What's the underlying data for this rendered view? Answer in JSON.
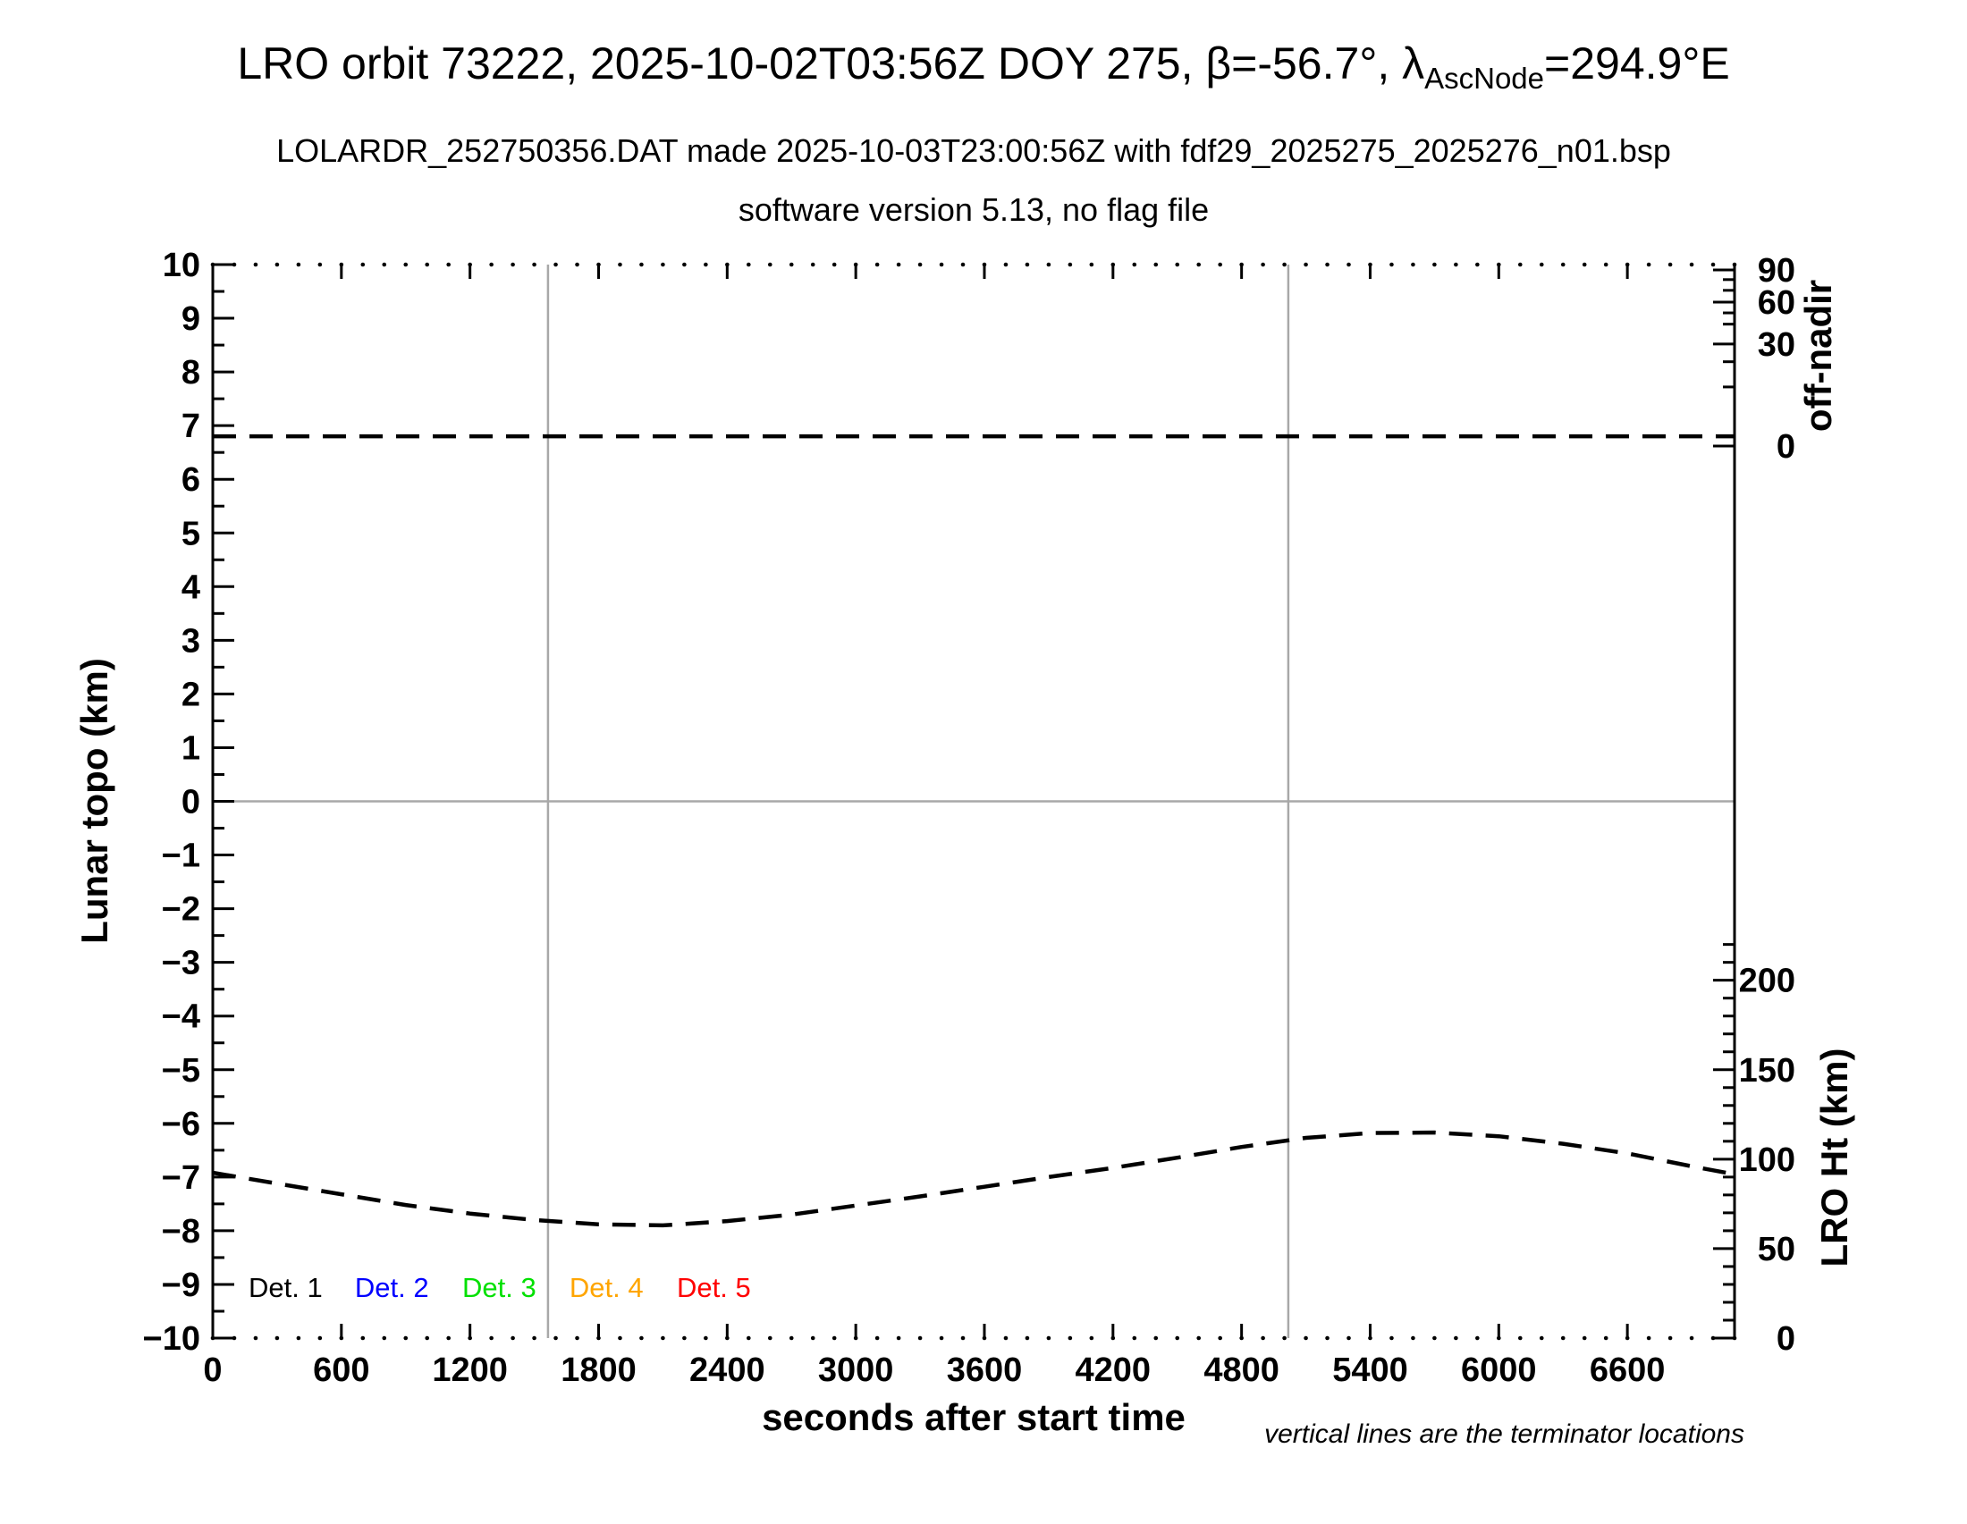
{
  "header": {
    "title_prefix": "LRO orbit 73222, 2025-10-02T03:56Z DOY 275, β=-56.7°, λ",
    "title_sub": "AscNode",
    "title_suffix": "=294.9°E",
    "subtitle1": "LOLARDR_252750356.DAT made 2025-10-03T23:00:56Z with fdf29_2025275_2025276_n01.bsp",
    "subtitle2": "software version 5.13, no flag file"
  },
  "chart_data": {
    "type": "line",
    "title": "LRO orbit 73222, 2025-10-02T03:56Z DOY 275",
    "axes": {
      "x": {
        "label": "seconds after start time",
        "min": 0,
        "max": 7100,
        "major_tick_step": 600,
        "minor_tick_step": 100,
        "major_tick_labels": [
          "0",
          "600",
          "1200",
          "1800",
          "2400",
          "3000",
          "3600",
          "4200",
          "4800",
          "5400",
          "6000",
          "6600"
        ]
      },
      "y_left": {
        "label": "Lunar topo (km)",
        "min": -10,
        "max": 10,
        "major_tick_step": 1,
        "minor_tick_step": 0.5
      },
      "y_right_top": {
        "label": "off-nadir",
        "major_ticks": [
          {
            "label": "90",
            "topo_pos": 9.9
          },
          {
            "label": "60",
            "topo_pos": 9.3
          },
          {
            "label": "30",
            "topo_pos": 8.52
          },
          {
            "label": "0",
            "topo_pos": 6.62
          }
        ],
        "minor_ticks_topo_pos": [
          9.72,
          9.52,
          9.1,
          8.89,
          8.19,
          7.72
        ]
      },
      "y_right_bottom": {
        "label": "LRO Ht (km)",
        "km_per_topo_unit": 30,
        "zero_km_topo_pos": -10,
        "major_ticks": [
          {
            "label": "200",
            "km": 200
          },
          {
            "label": "150",
            "km": 150
          },
          {
            "label": "100",
            "km": 100
          },
          {
            "label": "50",
            "km": 50
          },
          {
            "label": "0",
            "km": 0
          }
        ],
        "minor_tick_km_step": 10,
        "minor_tick_km_max": 220
      }
    },
    "gridlines": {
      "horizontal_topo": [
        0
      ],
      "vertical_terminators_s": [
        1564,
        5018
      ],
      "color": "#a8a8a8"
    },
    "series": [
      {
        "name": "off-nadir angle",
        "axis": "y_right_top",
        "style": "dashed-black",
        "approx_value_deg": 2,
        "topo_equiv_pos": 6.8,
        "x_s": [
          0,
          7100
        ]
      },
      {
        "name": "LRO height above terrain",
        "axis": "y_right_bottom",
        "style": "dashed-black",
        "x_s": [
          0,
          300,
          600,
          900,
          1200,
          1500,
          1800,
          2100,
          2400,
          2700,
          3000,
          3300,
          3600,
          3900,
          4200,
          4500,
          4800,
          5100,
          5400,
          5700,
          6000,
          6300,
          6600,
          6900,
          7100
        ],
        "height_km": [
          92.4,
          86.4,
          80.4,
          74.4,
          69.6,
          66.0,
          63.6,
          63.0,
          65.4,
          69.0,
          74.1,
          79.2,
          84.6,
          90.0,
          95.1,
          100.8,
          106.8,
          111.9,
          114.6,
          114.9,
          112.8,
          108.6,
          103.2,
          96.0,
          91.5
        ]
      }
    ],
    "legend": {
      "items": [
        {
          "label": "Det. 1",
          "color": "#000000"
        },
        {
          "label": "Det. 2",
          "color": "#0000ff"
        },
        {
          "label": "Det. 3",
          "color": "#00e000"
        },
        {
          "label": "Det. 4",
          "color": "#ffa500"
        },
        {
          "label": "Det. 5",
          "color": "#ff0000"
        }
      ],
      "y_topo": -9.05,
      "x_positions_s": [
        167,
        663,
        1164,
        1664,
        2165
      ]
    },
    "footnote": "vertical lines are the terminator locations"
  }
}
